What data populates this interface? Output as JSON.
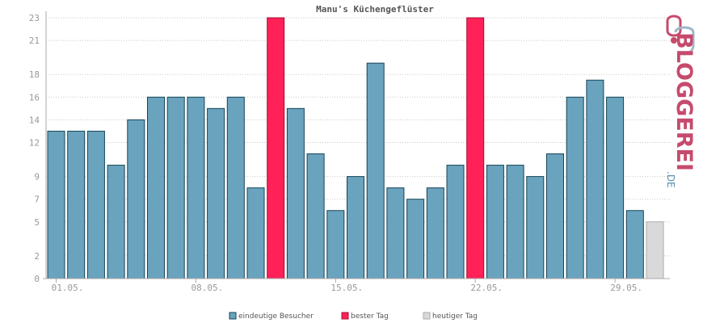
{
  "chart_data": {
    "type": "bar",
    "title": "Manu's Küchengeflüster",
    "xlabel": "",
    "ylabel": "",
    "ylim": [
      0,
      23
    ],
    "yticks": [
      0,
      2,
      5,
      7,
      9,
      12,
      14,
      16,
      18,
      21,
      23
    ],
    "x_tick_labels": [
      {
        "label": "01.05.",
        "index": 0
      },
      {
        "label": "08.05.",
        "index": 7
      },
      {
        "label": "15.05.",
        "index": 14
      },
      {
        "label": "22.05.",
        "index": 21
      },
      {
        "label": "29.05.",
        "index": 28
      }
    ],
    "categories": [
      "01.05.",
      "02.05.",
      "03.05.",
      "04.05.",
      "05.05.",
      "06.05.",
      "07.05.",
      "08.05.",
      "09.05.",
      "10.05.",
      "11.05.",
      "12.05.",
      "13.05.",
      "14.05.",
      "15.05.",
      "16.05.",
      "17.05.",
      "18.05.",
      "19.05.",
      "20.05.",
      "21.05.",
      "22.05.",
      "23.05.",
      "24.05.",
      "25.05.",
      "26.05.",
      "27.05.",
      "28.05.",
      "29.05.",
      "30.05.",
      "31.05."
    ],
    "values": [
      13,
      13,
      13,
      10,
      14,
      16,
      16,
      16,
      15,
      16,
      8,
      23,
      15,
      11,
      6,
      9,
      19,
      8,
      7,
      8,
      10,
      23,
      10,
      10,
      9,
      11,
      16,
      17.5,
      16,
      6,
      5
    ],
    "bar_kinds": [
      "normal",
      "normal",
      "normal",
      "normal",
      "normal",
      "normal",
      "normal",
      "normal",
      "normal",
      "normal",
      "normal",
      "best",
      "normal",
      "normal",
      "normal",
      "normal",
      "normal",
      "normal",
      "normal",
      "normal",
      "normal",
      "best",
      "normal",
      "normal",
      "normal",
      "normal",
      "normal",
      "normal",
      "normal",
      "normal",
      "today"
    ],
    "grid": true,
    "legend_position": "bottom-center",
    "legend": [
      {
        "key": "normal",
        "label": "eindeutige Besucher",
        "color": "#6aa3bd"
      },
      {
        "key": "best",
        "label": "bester Tag",
        "color": "#ff2157"
      },
      {
        "key": "today",
        "label": "heutiger Tag",
        "color": "#d9d9d9"
      }
    ],
    "colors": {
      "normal": "#6aa3bd",
      "normal_stroke": "#154457",
      "best": "#ff2157",
      "best_stroke": "#aa0b2f",
      "today": "#d9d9d9",
      "today_stroke": "#aaaaaa"
    }
  },
  "logo": {
    "text": "BLOGGEREI",
    "suffix": ".DE",
    "color": "#c64a6c",
    "suffix_color": "#5a8fb0"
  }
}
